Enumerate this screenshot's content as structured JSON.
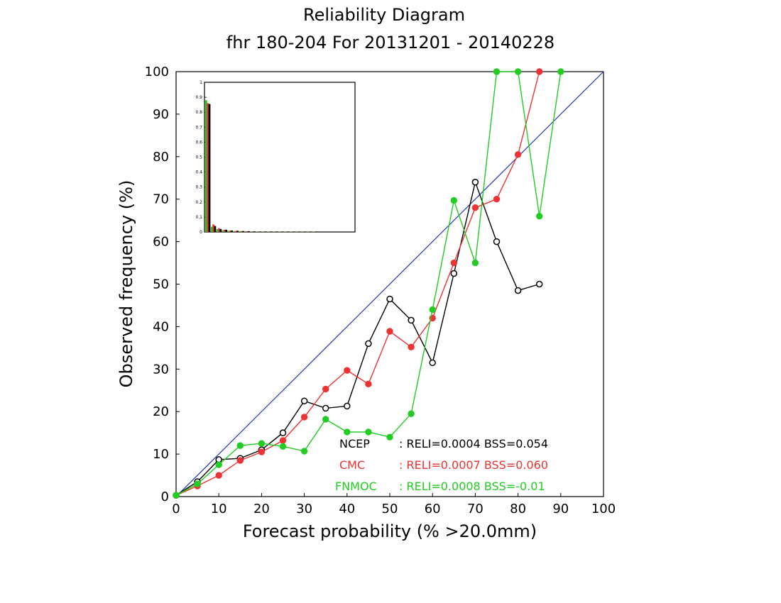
{
  "chart_data": {
    "type": "line",
    "title": "Reliability Diagram",
    "subtitle": "fhr 180-204 For 20131201 - 20140228",
    "xlabel": "Forecast probability (% >20.0mm)",
    "ylabel": "Observed frequency (%)",
    "xlim": [
      0,
      100
    ],
    "ylim": [
      0,
      100
    ],
    "x_ticks": [
      "0",
      "10",
      "20",
      "30",
      "40",
      "50",
      "60",
      "70",
      "80",
      "90",
      "100"
    ],
    "y_ticks": [
      "0",
      "10",
      "20",
      "30",
      "40",
      "50",
      "60",
      "70",
      "80",
      "90",
      "100"
    ],
    "diagonal_color": "#2233bb",
    "series": [
      {
        "name": "NCEP",
        "color": "#000000",
        "marker": "open-circle",
        "stats": ": RELI=0.0004  BSS=0.054",
        "points": [
          [
            0,
            0.3
          ],
          [
            5,
            3.5
          ],
          [
            10,
            8.7
          ],
          [
            15,
            9.0
          ],
          [
            20,
            11.0
          ],
          [
            25,
            15.0
          ],
          [
            30,
            22.5
          ],
          [
            35,
            20.8
          ],
          [
            40,
            21.3
          ],
          [
            45,
            36.0
          ],
          [
            50,
            46.5
          ],
          [
            55,
            41.5
          ],
          [
            60,
            31.5
          ],
          [
            65,
            52.5
          ],
          [
            70,
            74.0
          ],
          [
            75,
            60.0
          ],
          [
            80,
            48.5
          ],
          [
            85,
            50.0
          ]
        ]
      },
      {
        "name": "CMC",
        "color": "#ee3333",
        "marker": "filled-circle",
        "stats": ": RELI=0.0007  BSS=0.060",
        "points": [
          [
            0,
            0.3
          ],
          [
            5,
            2.5
          ],
          [
            10,
            5.0
          ],
          [
            15,
            8.5
          ],
          [
            20,
            10.5
          ],
          [
            25,
            13.2
          ],
          [
            30,
            18.7
          ],
          [
            35,
            25.3
          ],
          [
            40,
            29.7
          ],
          [
            45,
            26.5
          ],
          [
            50,
            38.9
          ],
          [
            55,
            35.2
          ],
          [
            60,
            42.0
          ],
          [
            65,
            55.0
          ],
          [
            70,
            68.0
          ],
          [
            75,
            70.0
          ],
          [
            80,
            80.5
          ],
          [
            85,
            100.0
          ]
        ]
      },
      {
        "name": "FNMOC",
        "color": "#22cc22",
        "marker": "filled-circle",
        "stats": ": RELI=0.0008  BSS=-0.01",
        "points": [
          [
            0,
            0.3
          ],
          [
            5,
            3.0
          ],
          [
            10,
            7.5
          ],
          [
            15,
            12.0
          ],
          [
            20,
            12.5
          ],
          [
            25,
            11.8
          ],
          [
            30,
            10.7
          ],
          [
            35,
            18.2
          ],
          [
            40,
            15.2
          ],
          [
            45,
            15.2
          ],
          [
            50,
            14.0
          ],
          [
            55,
            19.5
          ],
          [
            60,
            44.0
          ],
          [
            65,
            69.7
          ],
          [
            70,
            55.0
          ],
          [
            75,
            100.0
          ],
          [
            80,
            100.0
          ],
          [
            85,
            66.0
          ],
          [
            90,
            100.0
          ]
        ]
      }
    ],
    "inset_histogram": {
      "ylim": [
        0,
        1
      ],
      "y_ticks": [
        "0",
        "0.1",
        "0.2",
        "0.3",
        "0.4",
        "0.5",
        "0.6",
        "0.7",
        "0.8",
        "0.9",
        "1"
      ],
      "bins": [
        0,
        5,
        10,
        15,
        20,
        25,
        30,
        35,
        40,
        45,
        50,
        55,
        60,
        65,
        70,
        75,
        80,
        85,
        90,
        95
      ],
      "NCEP": [
        0.855,
        0.04,
        0.02,
        0.015,
        0.01,
        0.008,
        0.006,
        0.005,
        0.004,
        0.003,
        0.003,
        0.002,
        0.002,
        0.002,
        0.001,
        0.001,
        0.001,
        0.001,
        0.001,
        0.001
      ],
      "CMC": [
        0.86,
        0.05,
        0.025,
        0.015,
        0.01,
        0.007,
        0.006,
        0.005,
        0.004,
        0.003,
        0.003,
        0.002,
        0.002,
        0.002,
        0.001,
        0.001,
        0.001,
        0.001,
        0.001,
        0.001
      ],
      "FNMOC": [
        0.88,
        0.035,
        0.02,
        0.012,
        0.008,
        0.006,
        0.005,
        0.004,
        0.003,
        0.003,
        0.002,
        0.002,
        0.002,
        0.001,
        0.001,
        0.001,
        0.001,
        0.001,
        0.001,
        0.001
      ]
    }
  }
}
